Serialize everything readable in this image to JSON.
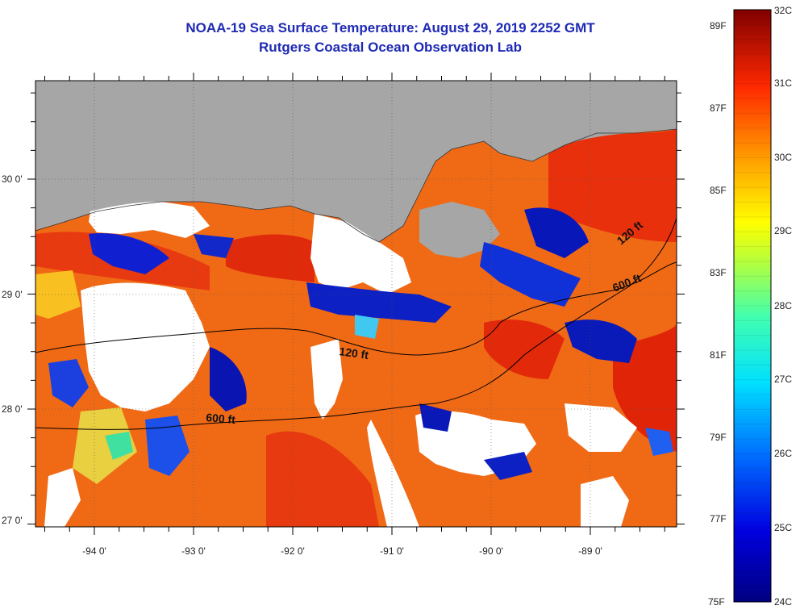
{
  "header": {
    "title": "NOAA-19 Sea Surface Temperature:  August 29, 2019 2252 GMT",
    "subtitle": "Rutgers Coastal Ocean Observation Lab"
  },
  "map": {
    "lon_labels": [
      "-94 0'",
      "-93 0'",
      "-92 0'",
      "-91 0'",
      "-90 0'",
      "-89 0'"
    ],
    "lat_labels": [
      "30 0'",
      "29 0'",
      "28 0'",
      "27 0'"
    ],
    "contour_labels": [
      "120 ft",
      "600 ft",
      "120 ft",
      "600 ft"
    ],
    "colors": {
      "land": "#a6a6a6",
      "cloud": "#ffffff",
      "warm": "#f06a16"
    }
  },
  "colorbar": {
    "fahrenheit_labels": [
      "89F",
      "87F",
      "85F",
      "83F",
      "81F",
      "79F",
      "77F",
      "75F"
    ],
    "celsius_labels": [
      "32C",
      "31C",
      "30C",
      "29C",
      "28C",
      "27C",
      "26C",
      "25C",
      "24C"
    ]
  }
}
